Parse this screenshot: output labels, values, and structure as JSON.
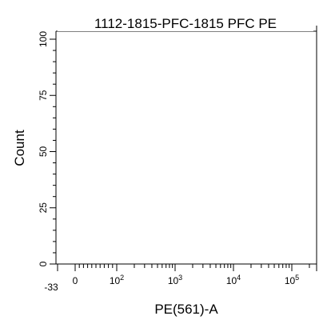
{
  "chart_data": {
    "type": "histogram",
    "title": "1112-1815-PFC-1815 PFC PE",
    "xlabel": "PE(561)-A",
    "ylabel": "Count",
    "x_scale": "biexponential",
    "x_range": [
      -33,
      262143
    ],
    "ylim": [
      0,
      105
    ],
    "y_ticks": [
      {
        "value": 0,
        "label": "0"
      },
      {
        "value": 25,
        "label": "25"
      },
      {
        "value": 50,
        "label": "50"
      },
      {
        "value": 75,
        "label": "75"
      },
      {
        "value": 100,
        "label": "100"
      }
    ],
    "x_ticks": [
      {
        "value": -33,
        "base": "-33",
        "exp": ""
      },
      {
        "value": 0,
        "base": "0",
        "exp": ""
      },
      {
        "value": 100,
        "base": "10",
        "exp": "2"
      },
      {
        "value": 1000,
        "base": "10",
        "exp": "3"
      },
      {
        "value": 10000,
        "base": "10",
        "exp": "4"
      },
      {
        "value": 100000,
        "base": "10",
        "exp": "5"
      }
    ],
    "series": [],
    "grid": false,
    "colors": {
      "axis": "#000000",
      "background": "#ffffff"
    }
  }
}
